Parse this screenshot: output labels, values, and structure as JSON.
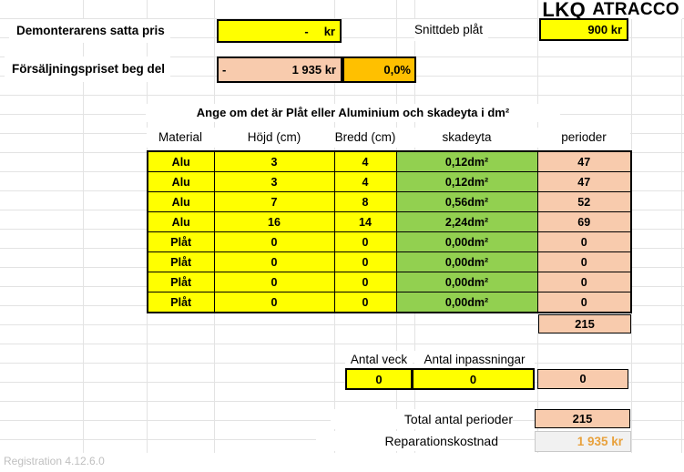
{
  "logo": {
    "lkq": "LKQ",
    "atracco": "ATRACCO"
  },
  "top": {
    "demonterarens_label": "Demonterarens satta pris",
    "demonterarens_value": "-",
    "demonterarens_unit": "kr",
    "snittdeb_label": "Snittdeb plåt",
    "snittdeb_value": "900 kr",
    "forsaljning_label": "Försäljningspriset beg del",
    "forsaljning_minus": "-",
    "forsaljning_value": "1 935 kr",
    "forsaljning_percent": "0,0%"
  },
  "table": {
    "title": "Ange om det är Plåt eller Aluminium och skadeyta i dm²",
    "headers": [
      "Material",
      "Höjd (cm)",
      "Bredd (cm)",
      "skadeyta",
      "perioder"
    ],
    "rows": [
      [
        "Alu",
        "3",
        "4",
        "0,12dm²",
        "47"
      ],
      [
        "Alu",
        "3",
        "4",
        "0,12dm²",
        "47"
      ],
      [
        "Alu",
        "7",
        "8",
        "0,56dm²",
        "52"
      ],
      [
        "Alu",
        "16",
        "14",
        "2,24dm²",
        "69"
      ],
      [
        "Plåt",
        "0",
        "0",
        "0,00dm²",
        "0"
      ],
      [
        "Plåt",
        "0",
        "0",
        "0,00dm²",
        "0"
      ],
      [
        "Plåt",
        "0",
        "0",
        "0,00dm²",
        "0"
      ],
      [
        "Plåt",
        "0",
        "0",
        "0,00dm²",
        "0"
      ]
    ],
    "sum_perioder": "215"
  },
  "adjustments": {
    "veck_label": "Antal veck",
    "veck_value": "0",
    "inpassningar_label": "Antal inpassningar",
    "inpassningar_value": "0",
    "result_value": "0"
  },
  "totals": {
    "total_perioder_label": "Total antal perioder",
    "total_perioder_value": "215",
    "reparationskostnad_label": "Reparationskostnad",
    "reparationskostnad_value": "1 935 kr"
  },
  "footer": {
    "version": "Registration 4.12.6.0"
  },
  "colors": {
    "input_yellow": "#FFFF00",
    "computed_green": "#92D050",
    "computed_peach": "#F8CBAD",
    "percent_orange": "#FFC000",
    "cost_text_orange": "#E8A13C",
    "gridline": "#E3E3E3"
  }
}
